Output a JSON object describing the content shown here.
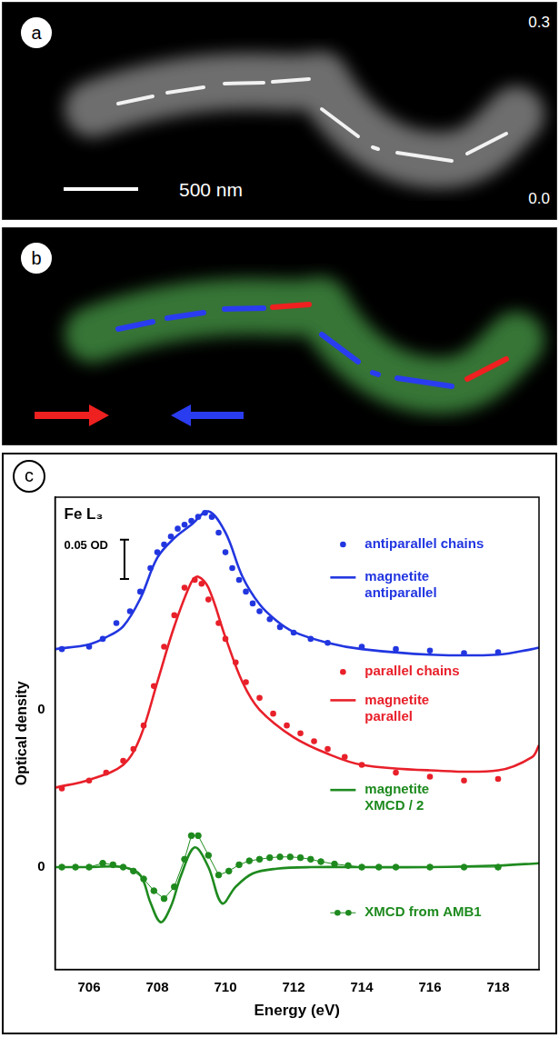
{
  "panels": [
    {
      "label": "a",
      "scale_bar": "500 nm",
      "colorbar_labels": [
        "0.3",
        "0.0"
      ]
    },
    {
      "label": "b"
    }
  ],
  "chart_data": {
    "label": "c",
    "type": "scatter",
    "title": "Fe L₃",
    "x_label": "Energy (eV)",
    "y_label": "Optical density",
    "xlim": [
      705,
      719.2
    ],
    "xticks": [
      706,
      708,
      710,
      712,
      714,
      716,
      718
    ],
    "ylim": [
      -0.13,
      0.47
    ],
    "yticks": [
      {
        "value": 0,
        "label": "0"
      },
      {
        "value": 0.2,
        "label": "0"
      }
    ],
    "grid": false,
    "legend": "right",
    "annotations": [
      {
        "text": "0.05 OD",
        "value": 0.05
      }
    ],
    "series": [
      {
        "name": "antiparallel chains",
        "color": "#2236e0",
        "type": "scatter",
        "marker": "circle",
        "line_style": "none",
        "x": [
          705.2,
          706,
          706.4,
          706.8,
          707.2,
          707.5,
          707.8,
          708,
          708.2,
          708.4,
          708.6,
          708.8,
          709,
          709.2,
          709.4,
          709.6,
          709.8,
          710,
          710.2,
          710.4,
          710.6,
          710.8,
          711,
          711.3,
          711.6,
          712,
          712.5,
          713,
          714,
          715,
          716,
          717,
          718
        ],
        "values": [
          0.277,
          0.28,
          0.29,
          0.31,
          0.325,
          0.35,
          0.38,
          0.4,
          0.41,
          0.42,
          0.43,
          0.435,
          0.44,
          0.445,
          0.45,
          0.445,
          0.425,
          0.4,
          0.38,
          0.365,
          0.35,
          0.335,
          0.325,
          0.315,
          0.305,
          0.298,
          0.29,
          0.285,
          0.28,
          0.277,
          0.275,
          0.272,
          0.273
        ]
      },
      {
        "name": "magnetite antiparallel",
        "color": "#2236e0",
        "type": "line",
        "marker": "none",
        "line_style": "solid",
        "x": [
          705,
          706,
          706.5,
          707,
          707.5,
          708,
          708.5,
          709,
          709.5,
          710,
          710.5,
          711,
          711.5,
          712,
          713,
          714,
          716,
          718,
          719,
          719.2
        ],
        "values": [
          0.277,
          0.283,
          0.292,
          0.306,
          0.341,
          0.393,
          0.418,
          0.435,
          0.452,
          0.425,
          0.369,
          0.334,
          0.313,
          0.299,
          0.285,
          0.277,
          0.27,
          0.27,
          0.277,
          0.279
        ]
      },
      {
        "name": "parallel chains",
        "color": "#e8202a",
        "type": "scatter",
        "marker": "circle",
        "line_style": "none",
        "x": [
          705.2,
          706,
          706.5,
          707,
          707.3,
          707.6,
          707.9,
          708.2,
          708.5,
          708.8,
          709.1,
          709.3,
          709.5,
          709.8,
          710,
          710.3,
          710.6,
          711,
          711.4,
          711.8,
          712.2,
          712.6,
          713,
          713.5,
          714,
          715,
          716,
          717,
          718
        ],
        "values": [
          0.1,
          0.11,
          0.12,
          0.135,
          0.15,
          0.18,
          0.23,
          0.28,
          0.32,
          0.355,
          0.365,
          0.36,
          0.34,
          0.31,
          0.29,
          0.26,
          0.235,
          0.215,
          0.195,
          0.18,
          0.17,
          0.16,
          0.15,
          0.14,
          0.13,
          0.12,
          0.115,
          0.11,
          0.112
        ]
      },
      {
        "name": "magnetite parallel",
        "color": "#e8202a",
        "type": "line",
        "marker": "none",
        "line_style": "solid",
        "x": [
          705,
          706,
          707,
          707.5,
          708,
          708.5,
          709,
          709.2,
          709.5,
          710,
          710.5,
          711,
          712,
          713,
          714,
          716,
          718,
          719,
          719.2
        ],
        "values": [
          0.101,
          0.111,
          0.13,
          0.165,
          0.235,
          0.306,
          0.362,
          0.369,
          0.355,
          0.292,
          0.235,
          0.2,
          0.165,
          0.144,
          0.13,
          0.123,
          0.123,
          0.14,
          0.155
        ]
      },
      {
        "name": "magnetite XMCD / 2",
        "color": "#1e8a1e",
        "type": "line",
        "marker": "none",
        "line_style": "solid",
        "x": [
          705,
          706,
          707,
          707.5,
          707.8,
          708.1,
          708.4,
          708.7,
          709.1,
          709.5,
          709.9,
          710.3,
          710.8,
          711.5,
          712.5,
          714,
          716,
          718,
          719.2
        ],
        "values": [
          0,
          0,
          0,
          -0.01,
          -0.045,
          -0.07,
          -0.05,
          -0.01,
          0.025,
          0,
          -0.046,
          -0.025,
          -0.008,
          -0.002,
          0,
          0,
          0,
          0.002,
          0.005
        ]
      },
      {
        "name": "XMCD from AMB1",
        "color": "#1e8a1e",
        "type": "line",
        "marker": "circle",
        "line_style": "solid",
        "x": [
          705.2,
          705.6,
          706,
          706.4,
          706.7,
          707,
          707.3,
          707.6,
          707.9,
          708.2,
          708.5,
          708.8,
          709,
          709.2,
          709.5,
          709.8,
          710.1,
          710.4,
          710.7,
          711,
          711.3,
          711.6,
          711.9,
          712.2,
          712.5,
          712.8,
          713.2,
          713.6,
          714,
          714.5,
          715,
          716,
          717,
          718
        ],
        "values": [
          0,
          0,
          0,
          0.005,
          0.003,
          0,
          -0.005,
          -0.015,
          -0.03,
          -0.04,
          -0.025,
          0.01,
          0.04,
          0.04,
          0.015,
          -0.01,
          -0.005,
          0.003,
          0.008,
          0.01,
          0.012,
          0.013,
          0.013,
          0.012,
          0.01,
          0.007,
          0.004,
          0.002,
          0,
          0,
          0,
          0,
          0,
          0
        ]
      }
    ]
  }
}
